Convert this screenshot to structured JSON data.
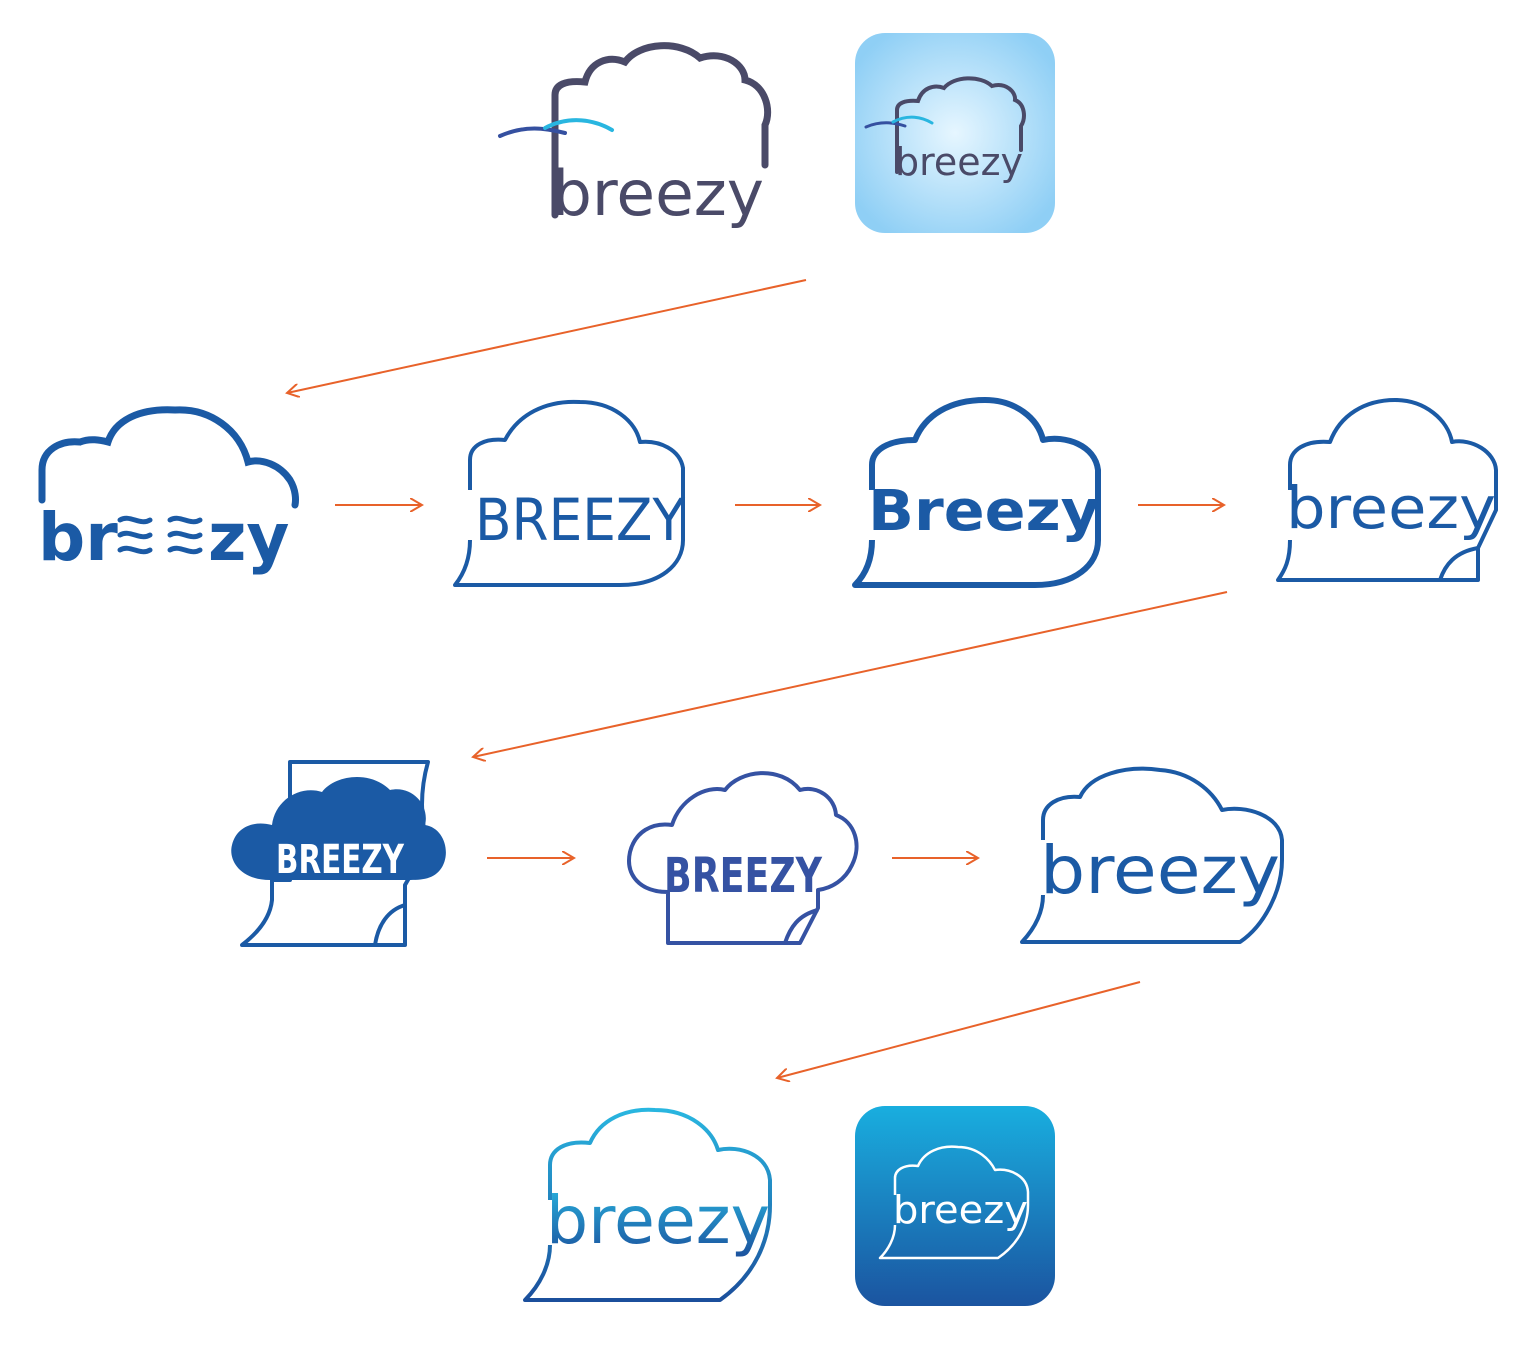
{
  "colors": {
    "arrow": "#e8622a",
    "navy": "#1b5aa5",
    "slate": "#4a4a68",
    "indigo": "#3552a3",
    "cyan": "#29b6e0",
    "appIconLight": "#bfe4fb",
    "appIconDark": "#1a5ea8"
  },
  "logos": [
    {
      "id": "logo-1",
      "text": "breezy"
    },
    {
      "id": "logo-1-app",
      "text": "breezy"
    },
    {
      "id": "logo-2",
      "text_left": "br",
      "text_right": "zy"
    },
    {
      "id": "logo-3",
      "text": "BREEZY"
    },
    {
      "id": "logo-4",
      "text": "Breezy"
    },
    {
      "id": "logo-5",
      "text": "breezy"
    },
    {
      "id": "logo-6",
      "text": "BREEZY"
    },
    {
      "id": "logo-7",
      "text": "BREEZY"
    },
    {
      "id": "logo-8",
      "text": "breezy"
    },
    {
      "id": "logo-9",
      "text": "breezy"
    },
    {
      "id": "logo-9-app",
      "text": "breezy"
    }
  ]
}
